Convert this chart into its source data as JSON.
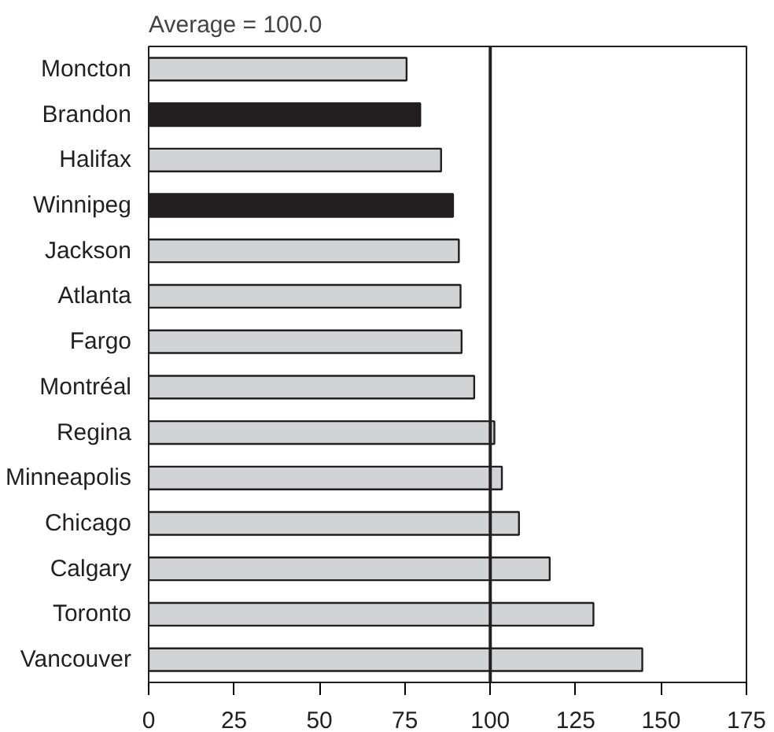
{
  "chart_data": {
    "type": "bar",
    "orientation": "horizontal",
    "title": "Average = 100.0",
    "categories": [
      "Moncton",
      "Brandon",
      "Halifax",
      "Winnipeg",
      "Jackson",
      "Atlanta",
      "Fargo",
      "Montréal",
      "Regina",
      "Minneapolis",
      "Chicago",
      "Calgary",
      "Toronto",
      "Vancouver"
    ],
    "values": [
      75.5,
      79.5,
      85.6,
      89.1,
      90.8,
      91.3,
      91.6,
      95.3,
      101.2,
      103.4,
      108.4,
      117.4,
      130.2,
      144.5
    ],
    "colors": [
      "#d2d3d5",
      "#231f20",
      "#d2d3d5",
      "#231f20",
      "#d2d3d5",
      "#d2d3d5",
      "#d2d3d5",
      "#d2d3d5",
      "#d2d3d5",
      "#d2d3d5",
      "#d2d3d5",
      "#d2d3d5",
      "#d2d3d5",
      "#d2d3d5"
    ],
    "xlim": [
      0,
      175
    ],
    "xticks": [
      0,
      25,
      50,
      75,
      100,
      125,
      150,
      175
    ],
    "ref_lines": [
      {
        "axis": "x",
        "value": 100,
        "color": "#231f20"
      }
    ],
    "grid": false
  }
}
